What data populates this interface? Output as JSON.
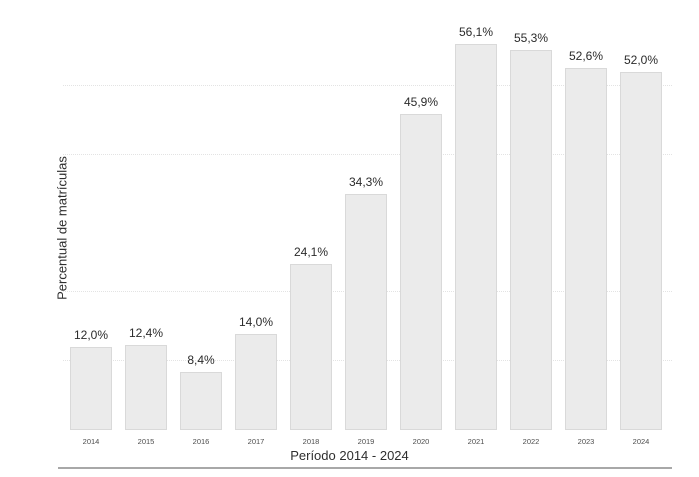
{
  "chart_data": {
    "type": "bar",
    "title": "",
    "xlabel": "Período 2014 - 2024",
    "ylabel": "Percentual de matrículas",
    "categories": [
      "2014",
      "2015",
      "2016",
      "2017",
      "2018",
      "2019",
      "2020",
      "2021",
      "2022",
      "2023",
      "2024"
    ],
    "values": [
      12.0,
      12.4,
      8.4,
      14.0,
      24.1,
      34.3,
      45.9,
      56.1,
      55.3,
      52.6,
      52.0
    ],
    "labels": [
      "12,0%",
      "12,4%",
      "8,4%",
      "14,0%",
      "24,1%",
      "34,3%",
      "45,9%",
      "56,1%",
      "55,3%",
      "52,6%",
      "52,0%"
    ],
    "ylim": [
      0,
      62.5
    ],
    "gridlines_percent": [
      10,
      20,
      40,
      50
    ],
    "grid": "horizontal-dotted",
    "legend": "none",
    "decimal_separator": ",",
    "colors": {
      "bar_fill": "#ebebeb",
      "bar_border": "#d9d9d9",
      "gridline": "#e3e3e3",
      "axis_line": "#a8a8a8",
      "value_label": "#2b2b2b",
      "tick_label": "#4d4d4d",
      "axis_title": "#2e2e2e",
      "background": "#ffffff"
    }
  }
}
